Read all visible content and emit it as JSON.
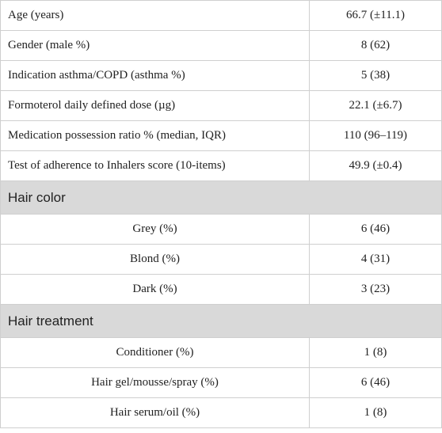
{
  "table": {
    "top_rows": [
      {
        "label": "Age (years)",
        "value": "66.7 (±11.1)"
      },
      {
        "label": "Gender (male %)",
        "value": "8 (62)"
      },
      {
        "label": "Indication asthma/COPD (asthma %)",
        "value": "5 (38)"
      },
      {
        "label": "Formoterol daily defined dose (µg)",
        "value": "22.1 (±6.7)"
      },
      {
        "label": "Medication possession ratio % (median, IQR)",
        "value": "110 (96–119)"
      },
      {
        "label": "Test of adherence to Inhalers score (10-items)",
        "value": "49.9 (±0.4)"
      }
    ],
    "sections": [
      {
        "title": "Hair color",
        "rows": [
          {
            "label": "Grey (%)",
            "value": "6 (46)"
          },
          {
            "label": "Blond (%)",
            "value": "4 (31)"
          },
          {
            "label": "Dark (%)",
            "value": "3 (23)"
          }
        ]
      },
      {
        "title": "Hair treatment",
        "rows": [
          {
            "label": "Conditioner (%)",
            "value": "1 (8)"
          },
          {
            "label": "Hair gel/mousse/spray (%)",
            "value": "6 (46)"
          },
          {
            "label": "Hair serum/oil (%)",
            "value": "1 (8)"
          }
        ]
      }
    ]
  }
}
